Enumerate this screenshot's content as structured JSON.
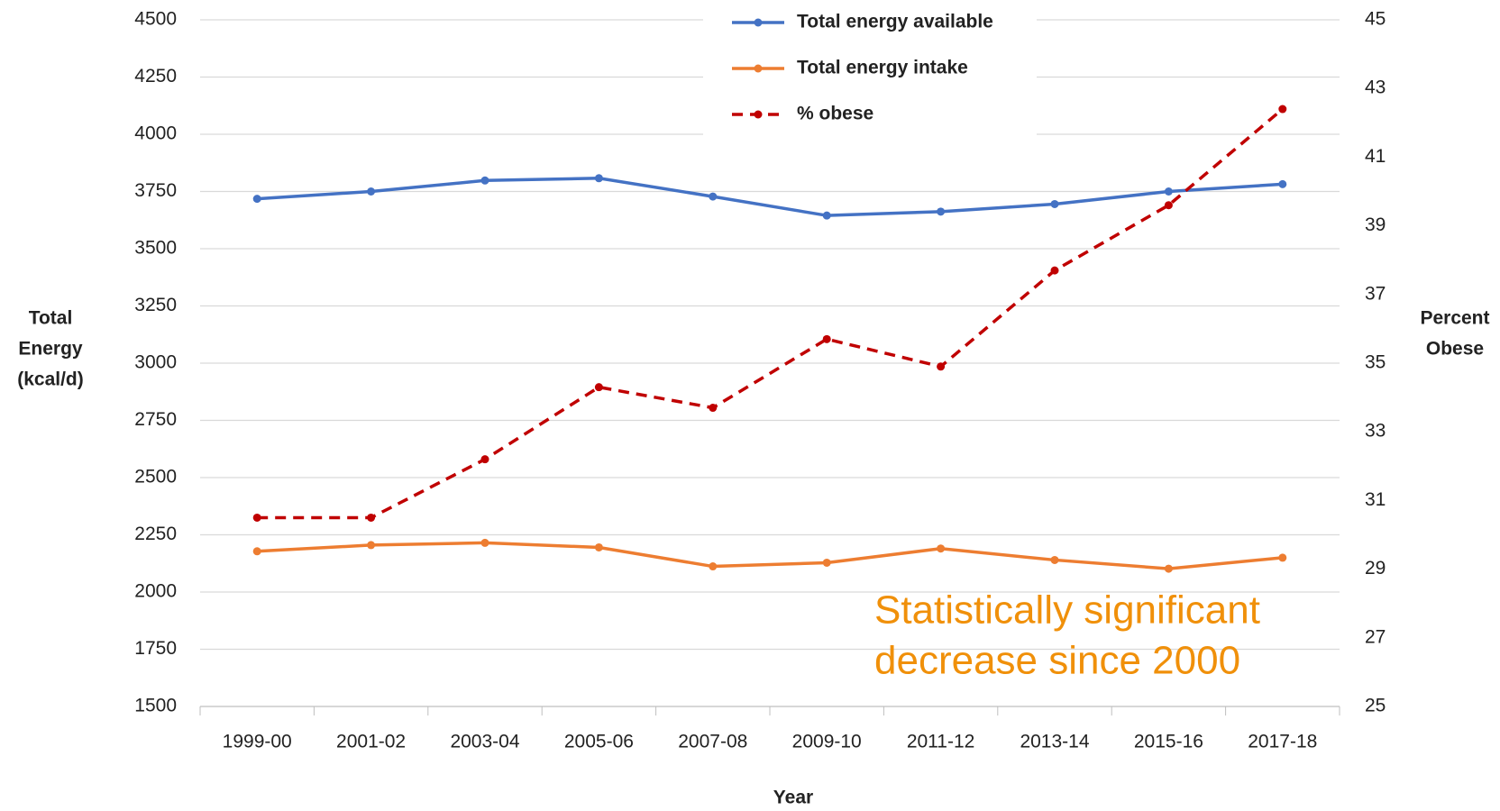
{
  "chart_data": {
    "type": "line",
    "categories": [
      "1999-00",
      "2001-02",
      "2003-04",
      "2005-06",
      "2007-08",
      "2009-10",
      "2011-12",
      "2013-14",
      "2015-16",
      "2017-18"
    ],
    "series": [
      {
        "name": "Total energy available",
        "color": "#4472c4",
        "dashed": false,
        "values": [
          3718,
          3750,
          3798,
          3808,
          3728,
          3645,
          3662,
          3695,
          3750,
          3782
        ]
      },
      {
        "name": "Total energy intake",
        "color": "#ed7d31",
        "dashed": false,
        "values": [
          2178,
          2205,
          2215,
          2195,
          2112,
          2128,
          2190,
          2140,
          2102,
          2150
        ]
      },
      {
        "name": "% obese",
        "color": "#c00000",
        "dashed": true,
        "axis": "y2",
        "values": [
          30.5,
          30.5,
          32.2,
          34.3,
          33.7,
          35.7,
          34.9,
          37.7,
          39.6,
          42.4
        ]
      }
    ],
    "ylim": [
      1500,
      4500
    ],
    "yticks": [
      1500,
      1750,
      2000,
      2250,
      2500,
      2750,
      3000,
      3250,
      3500,
      3750,
      4000,
      4250,
      4500
    ],
    "y2lim": [
      25,
      45
    ],
    "y2ticks": [
      25,
      27,
      29,
      31,
      33,
      35,
      37,
      39,
      41,
      43,
      45
    ],
    "grid": true,
    "ylabel": [
      "Total",
      "Energy",
      "(kcal/d)"
    ],
    "y2label": [
      "Percent",
      "Obese"
    ],
    "xlabel": "Year",
    "annotation": [
      "Statistically significant",
      "decrease since 2000"
    ],
    "annotation_color": "#f0900a",
    "legend": "top"
  }
}
